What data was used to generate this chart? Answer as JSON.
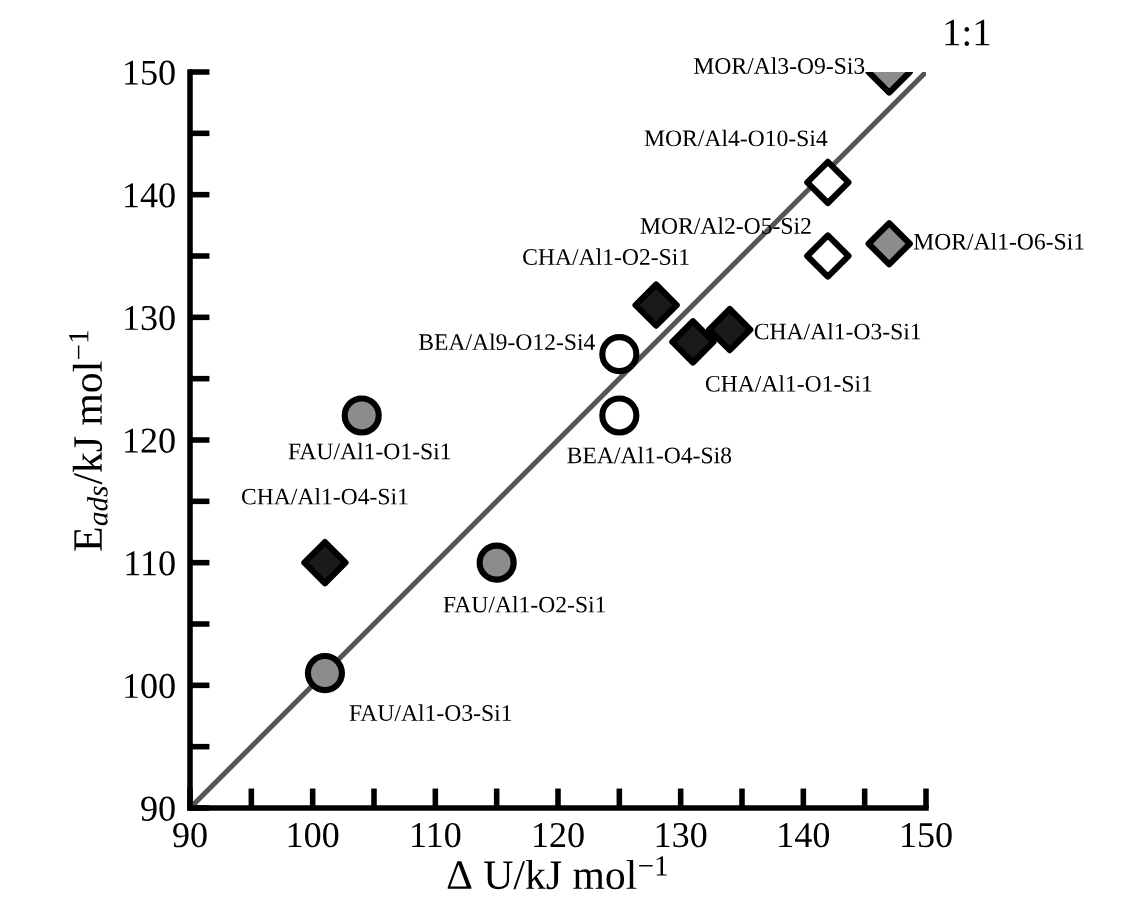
{
  "chart_data": {
    "type": "scatter",
    "xlabel": "Δ U/kJ mol$^{−1}$",
    "ylabel": "E$_{ads}$/kJ mol$^{−1}$",
    "xlim": [
      90,
      150
    ],
    "ylim": [
      90,
      150
    ],
    "xticks": [
      90,
      {
        "value": 95,
        "label": null
      },
      100,
      {
        "value": 105,
        "label": null
      },
      110,
      {
        "value": 115,
        "label": null
      },
      120,
      {
        "value": 125,
        "label": null
      },
      130,
      {
        "value": 135,
        "label": null
      },
      140,
      {
        "value": 145,
        "label": null
      },
      150
    ],
    "yticks": [
      90,
      {
        "value": 95,
        "label": null
      },
      100,
      {
        "value": 105,
        "label": null
      },
      110,
      {
        "value": 115,
        "label": null
      },
      120,
      {
        "value": 125,
        "label": null
      },
      130,
      {
        "value": 135,
        "label": null
      },
      140,
      {
        "value": 145,
        "label": null
      },
      150
    ],
    "grid": false,
    "legend": false,
    "series": [
      {
        "marker": "circle",
        "color": "#8c8c8c",
        "x": [
          104,
          115,
          101
        ],
        "values": [
          122,
          110,
          101
        ]
      },
      {
        "marker": "diamond",
        "color": "#1a1a1a",
        "x": [
          101,
          128,
          131,
          134
        ],
        "values": [
          110,
          131,
          128,
          129
        ]
      },
      {
        "marker": "circle",
        "color": "#ffffff",
        "x": [
          125,
          125
        ],
        "values": [
          127,
          122
        ]
      },
      {
        "marker": "diamond",
        "color": "#ffffff",
        "x": [
          142,
          142
        ],
        "values": [
          141,
          135
        ]
      },
      {
        "marker": "diamond",
        "color": "#8c8c8c",
        "x": [
          147,
          147
        ],
        "values": [
          150,
          136
        ]
      },
      {
        "type": "line",
        "marker": "none",
        "line_style": "solid",
        "color": "#555555",
        "x": [
          90,
          150
        ],
        "values": [
          90,
          150
        ]
      }
    ],
    "annotations": [
      {
        "text": "FAU/Al1-O1-Si1",
        "x": 104,
        "y": 122
      },
      {
        "text": "FAU/Al1-O2-Si1",
        "x": 115,
        "y": 110
      },
      {
        "text": "FAU/Al1-O3-Si1",
        "x": 101,
        "y": 101
      },
      {
        "text": "CHA/Al1-O4-Si1",
        "x": 101,
        "y": 110
      },
      {
        "text": "CHA/Al1-O2-Si1",
        "x": 128,
        "y": 131
      },
      {
        "text": "CHA/Al1-O1-Si1",
        "x": 131,
        "y": 128
      },
      {
        "text": "CHA/Al1-O3-Si1",
        "x": 134,
        "y": 129
      },
      {
        "text": "BEA/Al9-O12-Si4",
        "x": 125,
        "y": 127
      },
      {
        "text": "BEA/Al1-O4-Si8",
        "x": 125,
        "y": 122
      },
      {
        "text": "MOR/Al4-O10-Si4",
        "x": 142,
        "y": 141
      },
      {
        "text": "MOR/Al2-O5-Si2",
        "x": 142,
        "y": 135
      },
      {
        "text": "MOR/Al3-O9-Si3",
        "x": 147,
        "y": 150
      },
      {
        "text": "MOR/Al1-O6-Si1",
        "x": 147,
        "y": 136
      },
      {
        "text": "1:1",
        "x": 150,
        "y": 150
      }
    ]
  }
}
